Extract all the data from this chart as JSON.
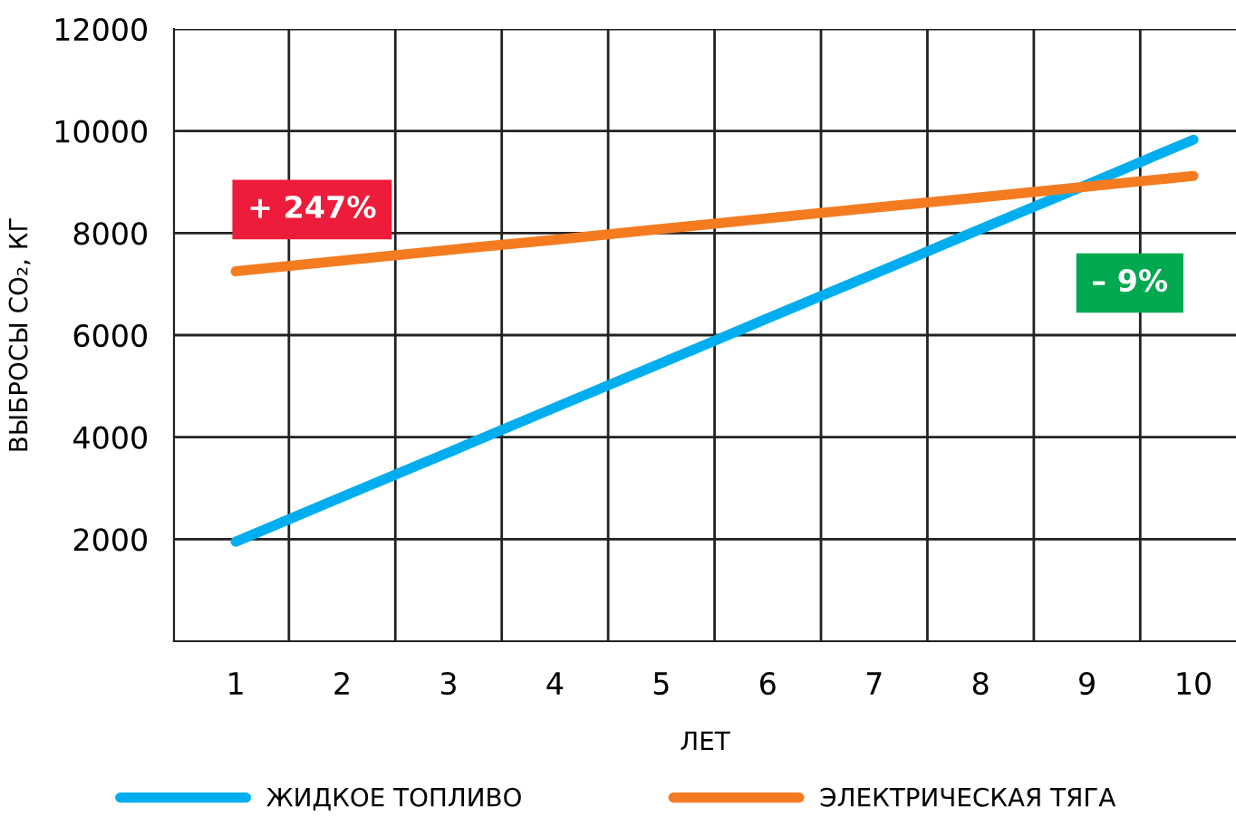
{
  "chart_data": {
    "type": "line",
    "xlabel": "ЛЕТ",
    "ylabel": "ВЫБРОСЫ CO₂, КГ",
    "categories": [
      "1",
      "2",
      "3",
      "4",
      "5",
      "6",
      "7",
      "8",
      "9",
      "10"
    ],
    "series": [
      {
        "name": "ЖИДКОЕ ТОПЛИВО",
        "color": "#00aeef",
        "values": [
          1950,
          2830,
          3700,
          4580,
          5450,
          6330,
          7200,
          8080,
          8950,
          9830
        ]
      },
      {
        "name": "ЭЛЕКТРИЧЕСКАЯ ТЯГА",
        "color": "#f47b20",
        "values": [
          7250,
          7460,
          7670,
          7870,
          8080,
          8290,
          8500,
          8700,
          8910,
          9120
        ]
      }
    ],
    "ylim": [
      0,
      12000
    ],
    "yticks": [
      2000,
      4000,
      6000,
      8000,
      10000,
      12000
    ],
    "annotations": [
      "+ 247%",
      "– 9%"
    ],
    "grid": true,
    "legend": "bottom",
    "marker": "none",
    "line_style": "solid"
  }
}
